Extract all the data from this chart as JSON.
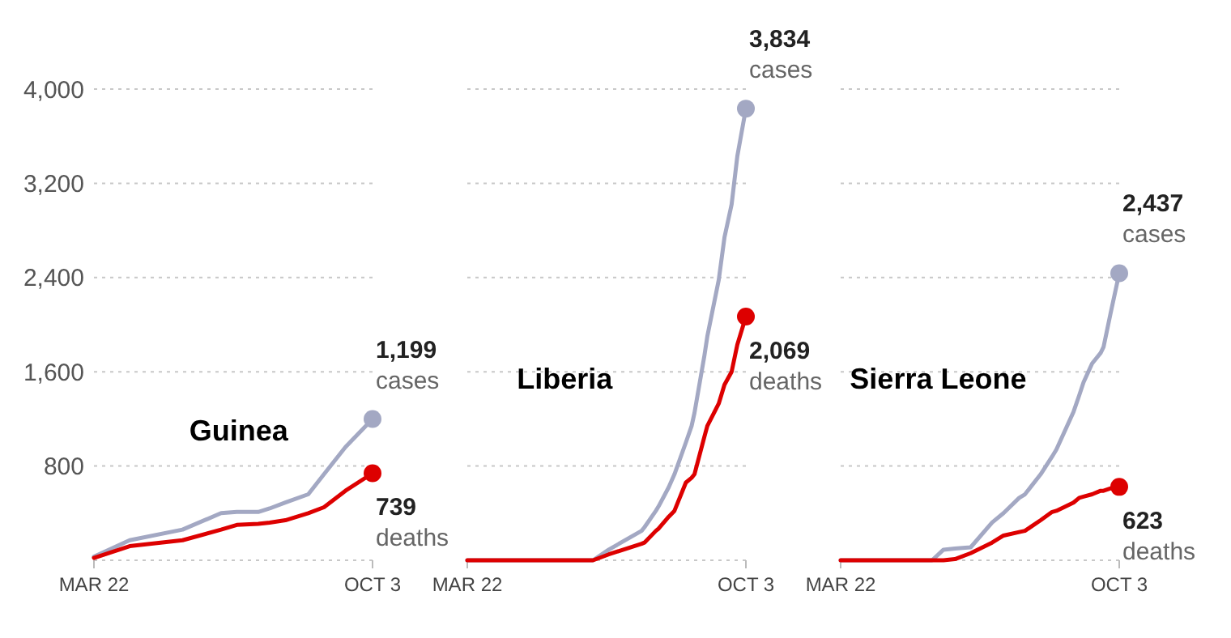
{
  "chart_data": [
    {
      "type": "line",
      "title": "Guinea",
      "x": [
        "--03-22",
        "--04-16",
        "--05-23",
        "--06-19",
        "--06-30",
        "--07-15",
        "--07-23",
        "--08-03",
        "--08-19",
        "--08-30",
        "--09-14",
        "--10-03"
      ],
      "xlim": [
        "--03-22",
        "--10-03"
      ],
      "xticks": [
        {
          "value": "--03-22",
          "label": "MAR 22"
        },
        {
          "value": "--10-03",
          "label": "OCT 3"
        }
      ],
      "ylim": [
        0,
        4000
      ],
      "yticks": [
        {
          "value": 0,
          "label": null
        },
        {
          "value": 800,
          "label": "800"
        },
        {
          "value": 1600,
          "label": "1,600"
        },
        {
          "value": 2400,
          "label": "2,400"
        },
        {
          "value": 3200,
          "label": "3,200"
        },
        {
          "value": 4000,
          "label": "4,000"
        }
      ],
      "grid": "y",
      "series": [
        {
          "name": "cases",
          "color": "#a3a8c3",
          "values": [
            30,
            170,
            260,
            400,
            410,
            410,
            440,
            490,
            560,
            730,
            960,
            1199
          ],
          "value_labels": [
            null,
            null,
            null,
            null,
            null,
            null,
            null,
            null,
            null,
            null,
            null,
            "1,199"
          ]
        },
        {
          "name": "deaths",
          "color": "#dd0000",
          "values": [
            20,
            120,
            170,
            260,
            300,
            310,
            320,
            340,
            400,
            450,
            590,
            739
          ],
          "value_labels": [
            null,
            null,
            null,
            null,
            null,
            null,
            null,
            null,
            null,
            null,
            null,
            "739"
          ]
        }
      ]
    },
    {
      "type": "line",
      "title": "Liberia",
      "x": [
        "--03-22",
        "--06-18",
        "--06-29",
        "--07-22",
        "--07-24",
        "--08-01",
        "--08-03",
        "--08-10",
        "--08-14",
        "--08-22",
        "--08-26",
        "--08-28",
        "--09-04",
        "--09-06",
        "--09-14",
        "--09-18",
        "--09-23",
        "--09-27",
        "--10-03"
      ],
      "xlim": [
        "--03-22",
        "--10-03"
      ],
      "xticks": [
        {
          "value": "--03-22",
          "label": "MAR 22"
        },
        {
          "value": "--10-03",
          "label": "OCT 3"
        }
      ],
      "ylim": [
        0,
        4000
      ],
      "yticks": [
        0,
        800,
        1600,
        2400,
        3200,
        4000
      ],
      "grid": "y",
      "tick_labels": "x",
      "series": [
        {
          "name": "cases",
          "color": "#a3a8c3",
          "values": [
            0,
            0,
            90,
            250,
            280,
            420,
            460,
            620,
            730,
            1000,
            1140,
            1250,
            1740,
            1900,
            2380,
            2740,
            3020,
            3430,
            3834
          ],
          "value_labels": [
            null,
            null,
            null,
            null,
            null,
            null,
            null,
            null,
            null,
            null,
            null,
            null,
            null,
            null,
            null,
            null,
            null,
            null,
            "3,834"
          ]
        },
        {
          "name": "deaths",
          "color": "#dd0000",
          "values": [
            0,
            0,
            50,
            140,
            150,
            250,
            270,
            370,
            420,
            660,
            700,
            730,
            1050,
            1140,
            1330,
            1490,
            1600,
            1830,
            2069
          ],
          "value_labels": [
            null,
            null,
            null,
            null,
            null,
            null,
            null,
            null,
            null,
            null,
            null,
            null,
            null,
            null,
            null,
            null,
            null,
            null,
            "2,069"
          ]
        }
      ]
    },
    {
      "type": "line",
      "title": "Sierra Leone",
      "x": [
        "--03-22",
        "--05-25",
        "--06-02",
        "--06-10",
        "--06-21",
        "--07-06",
        "--07-14",
        "--07-25",
        "--07-29",
        "--08-09",
        "--08-17",
        "--08-20",
        "--09-01",
        "--09-05",
        "--09-08",
        "--09-14",
        "--09-20",
        "--09-22",
        "--09-27",
        "--10-03"
      ],
      "xlim": [
        "--03-22",
        "--10-03"
      ],
      "xticks": [
        {
          "value": "--03-22",
          "label": "MAR 22"
        },
        {
          "value": "--10-03",
          "label": "OCT 3"
        }
      ],
      "ylim": [
        0,
        4000
      ],
      "yticks": [
        0,
        800,
        1600,
        2400,
        3200,
        4000
      ],
      "grid": "y",
      "tick_labels": "x",
      "series": [
        {
          "name": "cases",
          "color": "#a3a8c3",
          "values": [
            0,
            0,
            90,
            100,
            110,
            320,
            400,
            530,
            560,
            730,
            880,
            940,
            1260,
            1400,
            1510,
            1670,
            1760,
            1810,
            2100,
            2437
          ],
          "value_labels": [
            null,
            null,
            null,
            null,
            null,
            null,
            null,
            null,
            null,
            null,
            null,
            null,
            null,
            null,
            null,
            null,
            null,
            null,
            null,
            "2,437"
          ]
        },
        {
          "name": "deaths",
          "color": "#dd0000",
          "values": [
            0,
            0,
            0,
            10,
            60,
            150,
            210,
            240,
            250,
            340,
            410,
            420,
            490,
            530,
            540,
            560,
            590,
            590,
            610,
            623
          ],
          "value_labels": [
            null,
            null,
            null,
            null,
            null,
            null,
            null,
            null,
            null,
            null,
            null,
            null,
            null,
            null,
            null,
            null,
            null,
            null,
            null,
            "623"
          ]
        }
      ]
    }
  ]
}
